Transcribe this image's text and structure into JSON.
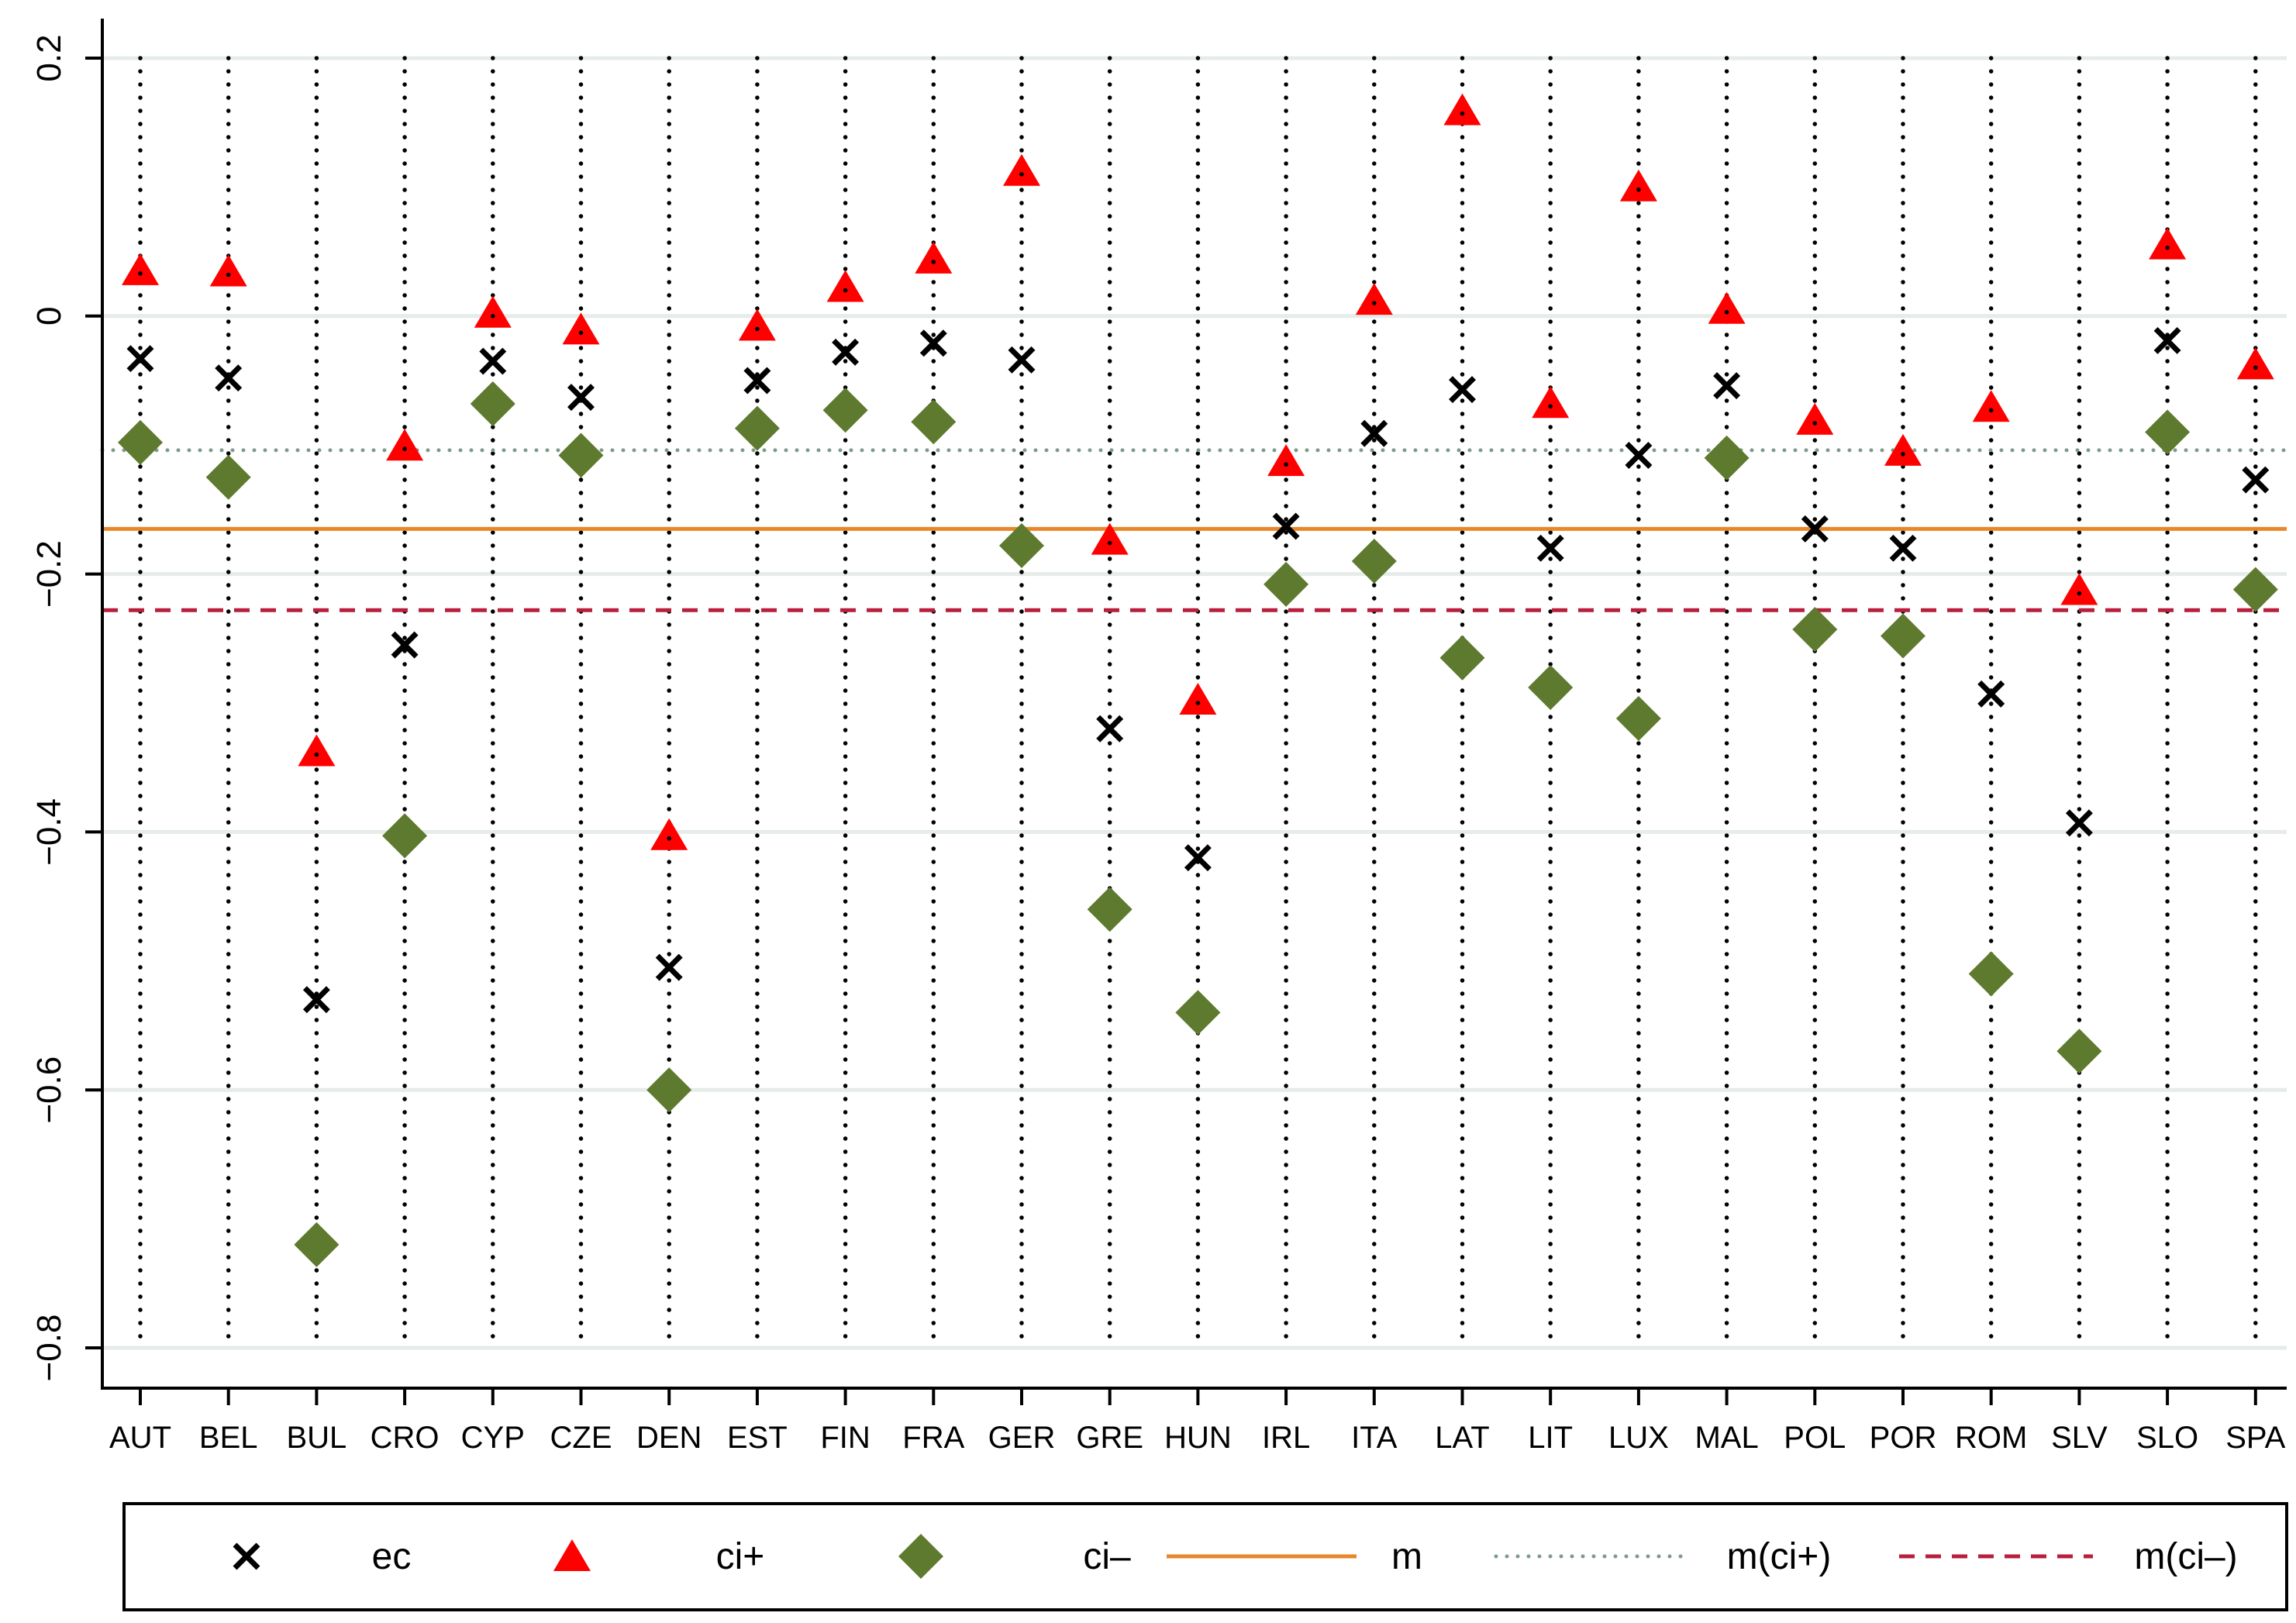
{
  "chart_data": {
    "type": "scatter",
    "title": "",
    "xlabel": "",
    "ylabel": "",
    "ylim": [
      -0.8,
      0.2
    ],
    "yticks": [
      0.2,
      0,
      -0.2,
      -0.4,
      -0.6,
      -0.8
    ],
    "ytick_labels": [
      "0.2",
      "0",
      "−0.2",
      "−0.4",
      "−0.6",
      "−0.8"
    ],
    "grid": true,
    "categories": [
      "AUT",
      "BEL",
      "BUL",
      "CRO",
      "CYP",
      "CZE",
      "DEN",
      "EST",
      "FIN",
      "FRA",
      "GER",
      "GRE",
      "HUN",
      "IRL",
      "ITA",
      "LAT",
      "LIT",
      "LUX",
      "MAL",
      "POL",
      "POR",
      "ROM",
      "SLV",
      "SLO",
      "SPA"
    ],
    "series": [
      {
        "name": "ec",
        "marker": "cross",
        "color": "#000000",
        "values": [
          -0.033,
          -0.048,
          -0.53,
          -0.255,
          -0.035,
          -0.063,
          -0.505,
          -0.05,
          -0.028,
          -0.021,
          -0.034,
          -0.32,
          -0.42,
          -0.163,
          -0.091,
          -0.057,
          -0.18,
          -0.108,
          -0.054,
          -0.165,
          -0.18,
          -0.293,
          -0.393,
          -0.019,
          -0.127
        ]
      },
      {
        "name": "ci+",
        "marker": "triangle",
        "color": "#ff0000",
        "values": [
          0.033,
          0.032,
          -0.34,
          -0.103,
          0.0,
          -0.013,
          -0.405,
          -0.01,
          0.02,
          0.042,
          0.11,
          -0.176,
          -0.3,
          -0.115,
          0.01,
          0.157,
          -0.07,
          0.098,
          0.003,
          -0.083,
          -0.107,
          -0.073,
          -0.215,
          0.053,
          -0.04
        ]
      },
      {
        "name": "ci–",
        "marker": "diamond",
        "color": "#5d7a2e",
        "values": [
          -0.098,
          -0.125,
          -0.72,
          -0.403,
          -0.068,
          -0.108,
          -0.6,
          -0.087,
          -0.073,
          -0.082,
          -0.178,
          -0.46,
          -0.54,
          -0.208,
          -0.19,
          -0.265,
          -0.288,
          -0.312,
          -0.11,
          -0.243,
          -0.248,
          -0.51,
          -0.57,
          -0.09,
          -0.212
        ]
      }
    ],
    "reference_lines": [
      {
        "name": "m",
        "value": -0.165,
        "color": "#e8872a",
        "style": "solid"
      },
      {
        "name": "m(ci+)",
        "value": -0.104,
        "color": "#7f9a8a",
        "style": "dotted"
      },
      {
        "name": "m(ci–)",
        "value": -0.228,
        "color": "#b81f3c",
        "style": "dashed"
      }
    ],
    "legend": {
      "position": "bottom",
      "entries": [
        "ec",
        "ci+",
        "ci–",
        "m",
        "m(ci+)",
        "m(ci–)"
      ]
    }
  }
}
